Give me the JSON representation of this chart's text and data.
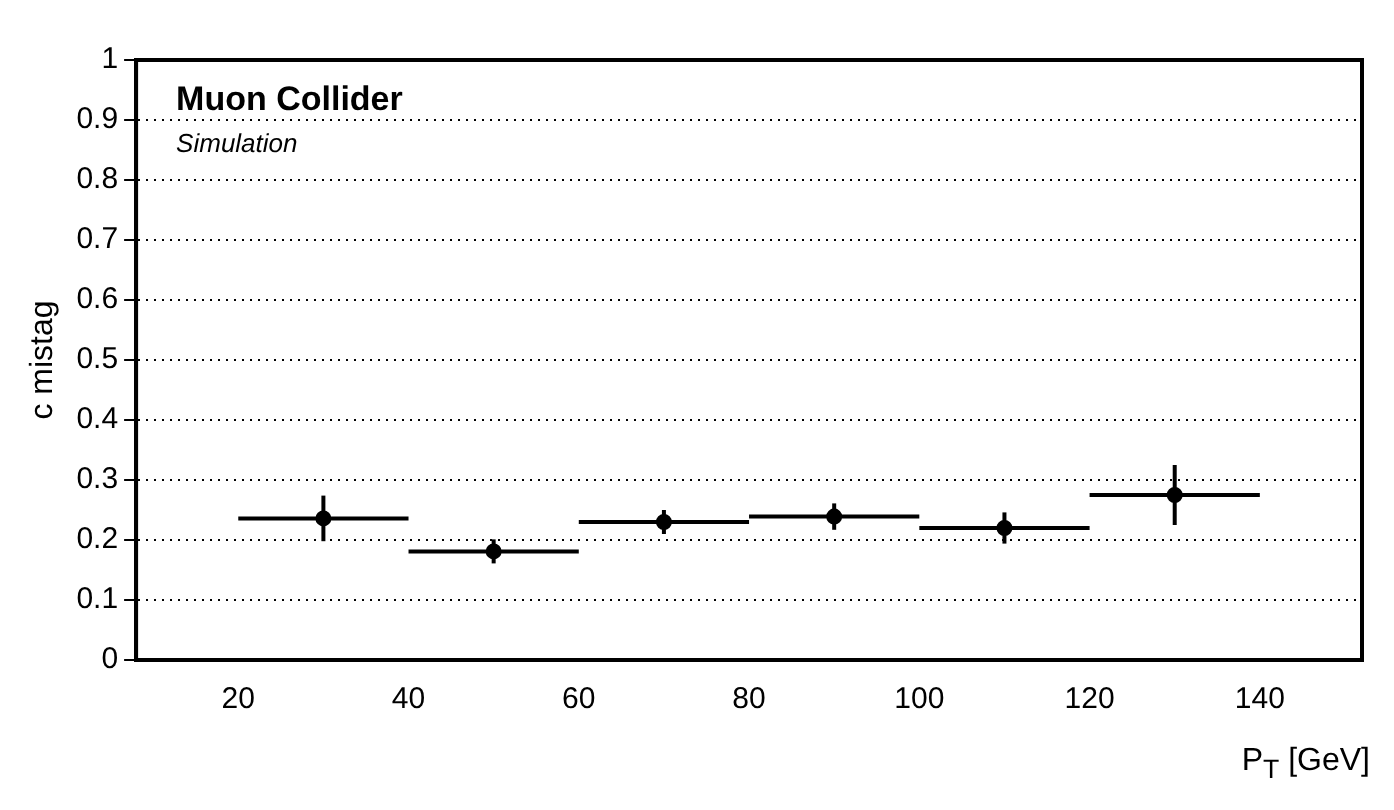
{
  "chart_data": {
    "type": "scatter",
    "ylabel": "c mistag",
    "xlabel": "P$_{T}$ [GeV]",
    "annotations": [
      "Muon Collider",
      "Simulation"
    ],
    "x": [
      30,
      50,
      70,
      90,
      110,
      130
    ],
    "values": [
      0.236,
      0.181,
      0.23,
      0.239,
      0.22,
      0.275
    ],
    "errors": [
      0.038,
      0.02,
      0.02,
      0.022,
      0.026,
      0.05
    ],
    "xerrors": [
      10,
      10,
      10,
      10,
      10,
      10
    ],
    "color": "#000000",
    "marker": "circle",
    "xlim": [
      8,
      152
    ],
    "xticks": [
      20,
      40,
      60,
      80,
      100,
      120,
      140
    ],
    "ylim": [
      0,
      1
    ],
    "yticks": [
      0,
      0.1,
      0.2,
      0.3,
      0.4,
      0.5,
      0.6,
      0.7,
      0.8,
      0.9,
      1
    ],
    "grid": "y",
    "legend": false
  }
}
